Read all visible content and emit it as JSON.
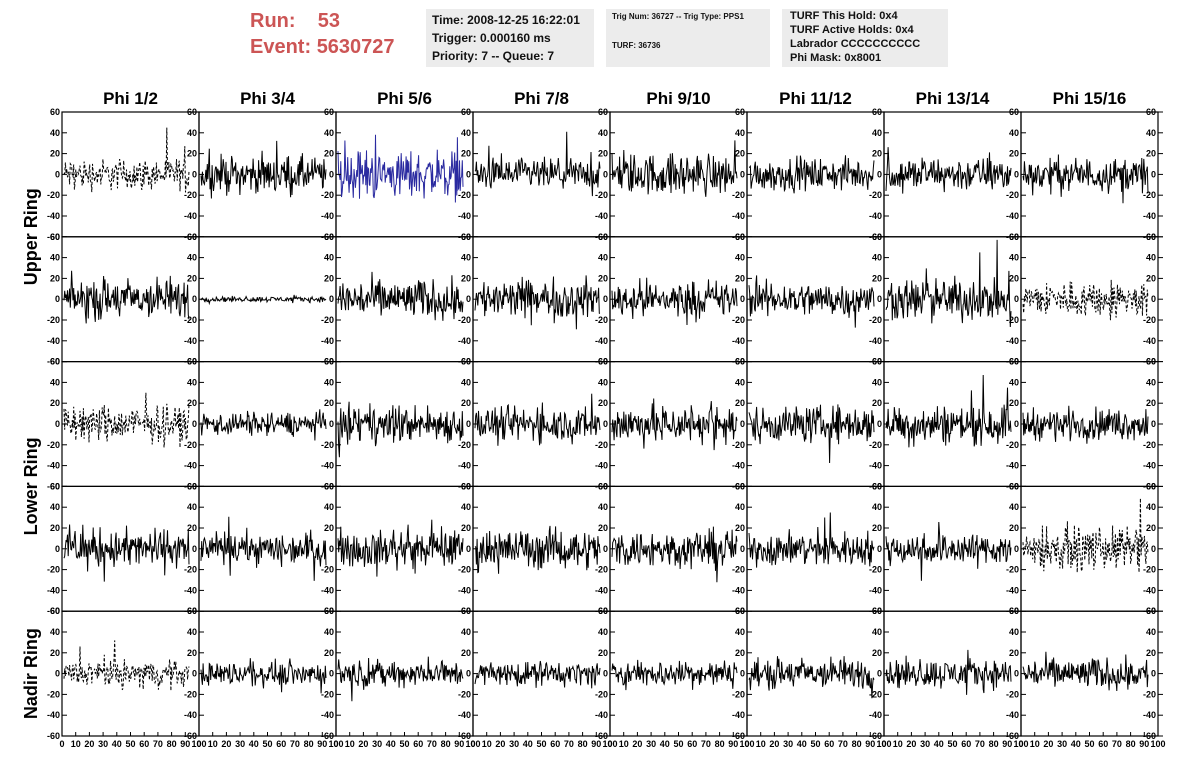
{
  "header": {
    "run_label": "Run:",
    "run_value": "53",
    "event_label": "Event:",
    "event_value": "5630727",
    "time": "Time: 2008-12-25 16:22:01",
    "trigger": "Trigger: 0.000160 ms",
    "priority": "Priority: 7 -- Queue: 7",
    "trig_num": "Trig Num: 36727 -- Trig Type: PPS1",
    "turf": "TURF: 36736",
    "turf_this_hold": "TURF This Hold: 0x4",
    "turf_active_holds": "TURF Active Holds: 0x4",
    "labrador": "Labrador CCCCCCCCCC",
    "phi_mask": "Phi Mask: 0x8001"
  },
  "colors": {
    "run_text": "#cc5555",
    "trace_default": "#000000",
    "trace_highlight": "#2a2aa0",
    "info_bg": "#ececec"
  },
  "chart_data": {
    "type": "line",
    "columns": [
      "Phi 1/2",
      "Phi 3/4",
      "Phi 5/6",
      "Phi 7/8",
      "Phi 9/10",
      "Phi 11/12",
      "Phi 13/14",
      "Phi 15/16"
    ],
    "ring_labels": [
      "Upper Ring",
      "Lower Ring",
      "Nadir Ring"
    ],
    "ylim": [
      -60,
      60
    ],
    "xlim": [
      0,
      100
    ],
    "y_ticks": [
      -60,
      -40,
      -20,
      0,
      20,
      40,
      60
    ],
    "y_tick_labels": [
      "-60",
      "-40",
      "-20",
      "0",
      "20",
      "40",
      "60"
    ],
    "x_ticks": [
      0,
      10,
      20,
      30,
      40,
      50,
      60,
      70,
      80,
      90,
      100
    ],
    "x_tick_labels": [
      "0",
      "10",
      "20",
      "30",
      "40",
      "50",
      "60",
      "70",
      "80",
      "90",
      "100"
    ],
    "panels": [
      {
        "row": 0,
        "col": 0,
        "style": "dashed",
        "color": "#000000",
        "amplitude": 12
      },
      {
        "row": 0,
        "col": 1,
        "style": "solid",
        "color": "#000000",
        "amplitude": 14
      },
      {
        "row": 0,
        "col": 2,
        "style": "solid",
        "color": "#2a2aa0",
        "amplitude": 18
      },
      {
        "row": 0,
        "col": 3,
        "style": "solid",
        "color": "#000000",
        "amplitude": 12
      },
      {
        "row": 0,
        "col": 4,
        "style": "solid",
        "color": "#000000",
        "amplitude": 16
      },
      {
        "row": 0,
        "col": 5,
        "style": "solid",
        "color": "#000000",
        "amplitude": 12
      },
      {
        "row": 0,
        "col": 6,
        "style": "solid",
        "color": "#000000",
        "amplitude": 13
      },
      {
        "row": 0,
        "col": 7,
        "style": "solid",
        "color": "#000000",
        "amplitude": 13
      },
      {
        "row": 1,
        "col": 0,
        "style": "solid",
        "color": "#000000",
        "amplitude": 16
      },
      {
        "row": 1,
        "col": 1,
        "style": "solid",
        "color": "#000000",
        "amplitude": 2
      },
      {
        "row": 1,
        "col": 2,
        "style": "solid",
        "color": "#000000",
        "amplitude": 15
      },
      {
        "row": 1,
        "col": 3,
        "style": "solid",
        "color": "#000000",
        "amplitude": 15
      },
      {
        "row": 1,
        "col": 4,
        "style": "solid",
        "color": "#000000",
        "amplitude": 14
      },
      {
        "row": 1,
        "col": 5,
        "style": "solid",
        "color": "#000000",
        "amplitude": 13
      },
      {
        "row": 1,
        "col": 6,
        "style": "solid",
        "color": "#000000",
        "amplitude": 16
      },
      {
        "row": 1,
        "col": 7,
        "style": "dashed",
        "color": "#000000",
        "amplitude": 14
      },
      {
        "row": 2,
        "col": 0,
        "style": "dashed",
        "color": "#000000",
        "amplitude": 14
      },
      {
        "row": 2,
        "col": 1,
        "style": "solid",
        "color": "#000000",
        "amplitude": 9
      },
      {
        "row": 2,
        "col": 2,
        "style": "solid",
        "color": "#000000",
        "amplitude": 14
      },
      {
        "row": 2,
        "col": 3,
        "style": "solid",
        "color": "#000000",
        "amplitude": 13
      },
      {
        "row": 2,
        "col": 4,
        "style": "solid",
        "color": "#000000",
        "amplitude": 15
      },
      {
        "row": 2,
        "col": 5,
        "style": "solid",
        "color": "#000000",
        "amplitude": 14
      },
      {
        "row": 2,
        "col": 6,
        "style": "solid",
        "color": "#000000",
        "amplitude": 15
      },
      {
        "row": 2,
        "col": 7,
        "style": "solid",
        "color": "#000000",
        "amplitude": 12
      },
      {
        "row": 3,
        "col": 0,
        "style": "solid",
        "color": "#000000",
        "amplitude": 15
      },
      {
        "row": 3,
        "col": 1,
        "style": "solid",
        "color": "#000000",
        "amplitude": 12
      },
      {
        "row": 3,
        "col": 2,
        "style": "solid",
        "color": "#000000",
        "amplitude": 14
      },
      {
        "row": 3,
        "col": 3,
        "style": "solid",
        "color": "#000000",
        "amplitude": 15
      },
      {
        "row": 3,
        "col": 4,
        "style": "solid",
        "color": "#000000",
        "amplitude": 14
      },
      {
        "row": 3,
        "col": 5,
        "style": "solid",
        "color": "#000000",
        "amplitude": 13
      },
      {
        "row": 3,
        "col": 6,
        "style": "solid",
        "color": "#000000",
        "amplitude": 12
      },
      {
        "row": 3,
        "col": 7,
        "style": "dashed",
        "color": "#000000",
        "amplitude": 16
      },
      {
        "row": 4,
        "col": 0,
        "style": "dashed",
        "color": "#000000",
        "amplitude": 10
      },
      {
        "row": 4,
        "col": 1,
        "style": "solid",
        "color": "#000000",
        "amplitude": 9
      },
      {
        "row": 4,
        "col": 2,
        "style": "solid",
        "color": "#000000",
        "amplitude": 10
      },
      {
        "row": 4,
        "col": 3,
        "style": "solid",
        "color": "#000000",
        "amplitude": 9
      },
      {
        "row": 4,
        "col": 4,
        "style": "solid",
        "color": "#000000",
        "amplitude": 10
      },
      {
        "row": 4,
        "col": 5,
        "style": "solid",
        "color": "#000000",
        "amplitude": 12
      },
      {
        "row": 4,
        "col": 6,
        "style": "solid",
        "color": "#000000",
        "amplitude": 11
      },
      {
        "row": 4,
        "col": 7,
        "style": "solid",
        "color": "#000000",
        "amplitude": 12
      }
    ]
  }
}
